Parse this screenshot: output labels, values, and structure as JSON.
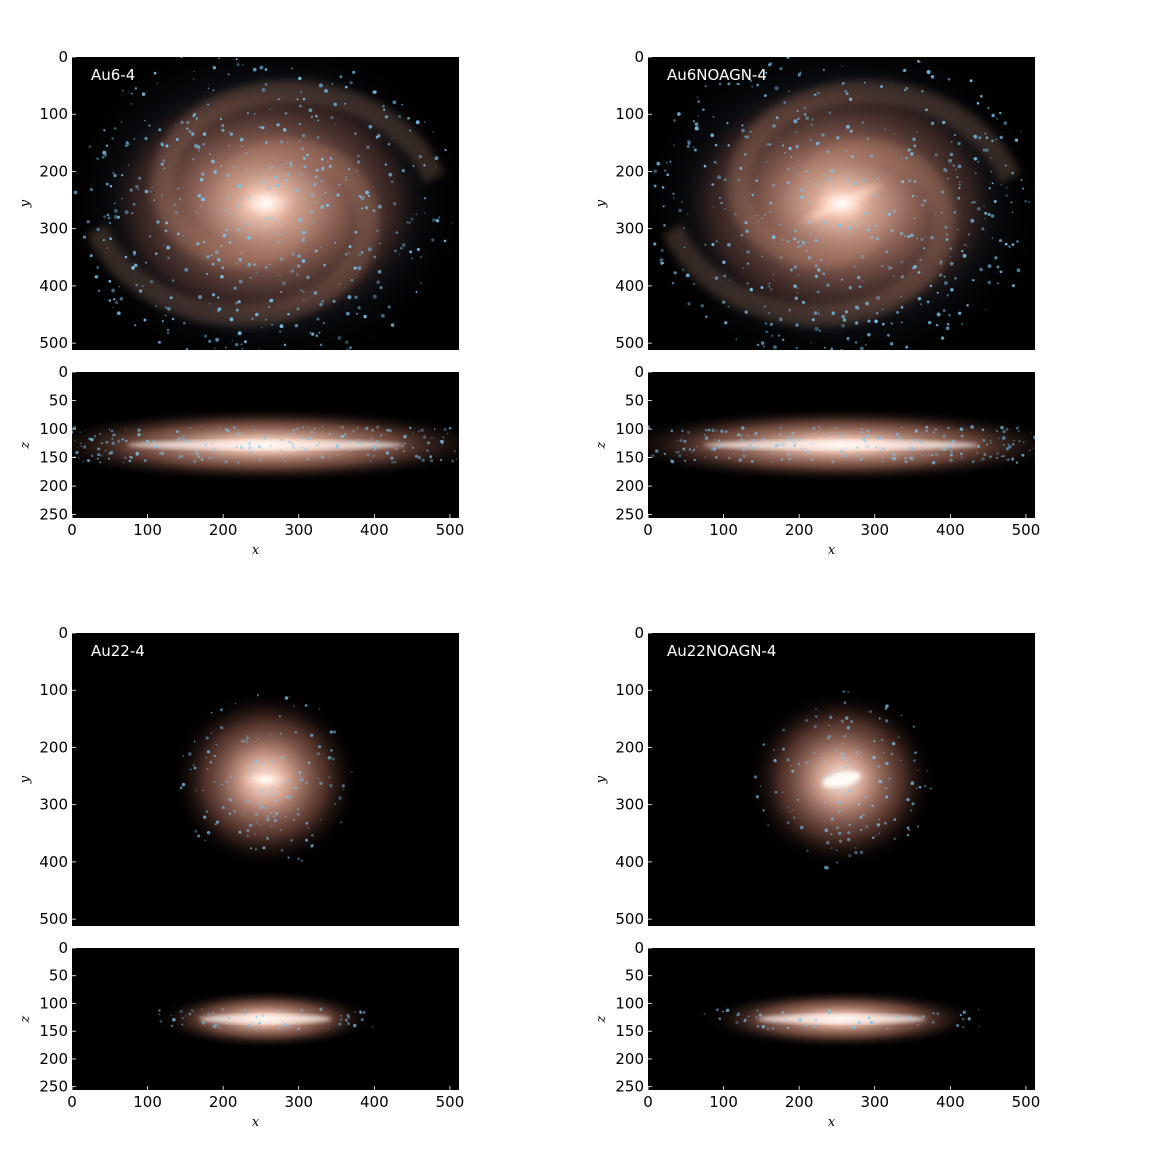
{
  "panels": [
    {
      "title": "Au6-4",
      "galaxy": "spiral_wide"
    },
    {
      "title": "Au6NOAGN-4",
      "galaxy": "spiral_barred"
    },
    {
      "title": "Au22-4",
      "galaxy": "compact"
    },
    {
      "title": "Au22NOAGN-4",
      "galaxy": "compact_barred"
    }
  ],
  "face_on": {
    "xlim": [
      0,
      512
    ],
    "ylim": [
      512,
      0
    ],
    "yticks": [
      "0",
      "100",
      "200",
      "300",
      "400",
      "500"
    ],
    "ylabel": "y"
  },
  "edge_on": {
    "xlim": [
      0,
      512
    ],
    "zlim": [
      256,
      0
    ],
    "zticks": [
      "0",
      "50",
      "100",
      "150",
      "200",
      "250"
    ],
    "xticks": [
      "0",
      "100",
      "200",
      "300",
      "400",
      "500"
    ],
    "zlabel": "z",
    "xlabel": "x"
  },
  "colors": {
    "background": "#000000",
    "core": "#fff4ee",
    "disk": "#d89a82",
    "outer": "#6b3f33",
    "young_stars": "#7cc4ee"
  }
}
